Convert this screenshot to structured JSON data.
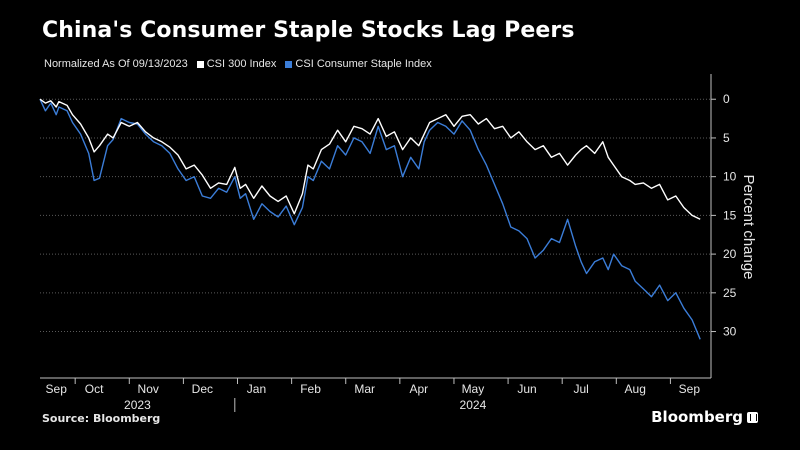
{
  "title": "China's Consumer Staple Stocks Lag Peers",
  "legend": {
    "normalized_note": "Normalized As Of 09/13/2023",
    "entries": [
      {
        "label": "CSI 300 Index",
        "color": "#ffffff"
      },
      {
        "label": "CSI Consumer Staple Index",
        "color": "#3b7dd8"
      }
    ]
  },
  "source": "Source: Bloomberg",
  "brand": "Bloomberg",
  "chart_data": {
    "type": "line",
    "ylabel": "Percent change",
    "ylim": [
      -36,
      3
    ],
    "y_ticks": [
      0,
      -5,
      -10,
      -15,
      -20,
      -25,
      -30
    ],
    "y_tick_labels": [
      "0",
      "5",
      "10",
      "15",
      "20",
      "25",
      "30"
    ],
    "x_range": [
      0,
      12.4
    ],
    "x_tick_labels": [
      "Sep",
      "Oct",
      "Nov",
      "Dec",
      "Jan",
      "Feb",
      "Mar",
      "Apr",
      "May",
      "Jun",
      "Jul",
      "Aug",
      "Sep"
    ],
    "x_label_pos": [
      0.3,
      1,
      2,
      3,
      4,
      5,
      6,
      7,
      8,
      9,
      10,
      11,
      12
    ],
    "year_labels": [
      {
        "label": "2023",
        "x": 1.8
      },
      {
        "label": "2024",
        "x": 8.0
      }
    ],
    "year_divider_x": 3.6,
    "series": [
      {
        "name": "CSI 300 Index",
        "color": "#ffffff",
        "x": [
          0,
          0.1,
          0.2,
          0.3,
          0.35,
          0.5,
          0.6,
          0.75,
          0.9,
          1.0,
          1.1,
          1.25,
          1.35,
          1.5,
          1.65,
          1.8,
          1.95,
          2.1,
          2.25,
          2.4,
          2.55,
          2.7,
          2.85,
          3.0,
          3.15,
          3.3,
          3.45,
          3.6,
          3.7,
          3.8,
          3.95,
          4.1,
          4.25,
          4.4,
          4.55,
          4.7,
          4.85,
          4.95,
          5.05,
          5.2,
          5.35,
          5.5,
          5.65,
          5.8,
          5.95,
          6.1,
          6.25,
          6.4,
          6.55,
          6.7,
          6.85,
          7.0,
          7.1,
          7.2,
          7.35,
          7.5,
          7.65,
          7.8,
          7.95,
          8.1,
          8.25,
          8.4,
          8.55,
          8.7,
          8.85,
          9.0,
          9.15,
          9.3,
          9.45,
          9.6,
          9.75,
          9.9,
          10.0,
          10.1,
          10.25,
          10.4,
          10.5,
          10.6,
          10.75,
          10.9,
          11.0,
          11.15,
          11.3,
          11.45,
          11.6,
          11.75,
          11.9,
          12.05,
          12.2
        ],
        "values": [
          0,
          -0.5,
          -0.2,
          -1.0,
          -0.3,
          -0.8,
          -2.0,
          -3.2,
          -5.0,
          -6.8,
          -6.0,
          -4.5,
          -5.0,
          -3.0,
          -3.5,
          -3.0,
          -4.2,
          -5.0,
          -5.5,
          -6.2,
          -7.2,
          -9.0,
          -8.5,
          -9.8,
          -11.5,
          -10.8,
          -11.0,
          -8.8,
          -11.5,
          -11.0,
          -12.8,
          -11.2,
          -12.5,
          -13.2,
          -12.5,
          -14.8,
          -12.2,
          -8.5,
          -9.0,
          -6.5,
          -5.8,
          -4.0,
          -5.5,
          -3.5,
          -3.8,
          -4.5,
          -2.5,
          -4.8,
          -4.2,
          -6.5,
          -5.0,
          -6.0,
          -4.5,
          -3.0,
          -2.5,
          -2.0,
          -3.5,
          -2.2,
          -2.0,
          -3.2,
          -2.5,
          -3.8,
          -3.5,
          -5.0,
          -4.2,
          -5.5,
          -6.5,
          -6.0,
          -7.5,
          -7.0,
          -8.5,
          -7.2,
          -6.5,
          -6.0,
          -7.0,
          -5.5,
          -7.5,
          -8.5,
          -10.0,
          -10.5,
          -11.0,
          -10.8,
          -11.5,
          -11.0,
          -13.0,
          -12.5,
          -14.0,
          -15.0,
          -15.5
        ]
      },
      {
        "name": "CSI Consumer Staple Index",
        "color": "#3b7dd8",
        "x": [
          0,
          0.1,
          0.2,
          0.3,
          0.35,
          0.5,
          0.6,
          0.75,
          0.9,
          1.0,
          1.1,
          1.25,
          1.35,
          1.5,
          1.65,
          1.8,
          1.95,
          2.1,
          2.25,
          2.4,
          2.55,
          2.7,
          2.85,
          3.0,
          3.15,
          3.3,
          3.45,
          3.6,
          3.7,
          3.8,
          3.95,
          4.1,
          4.25,
          4.4,
          4.55,
          4.7,
          4.85,
          4.95,
          5.05,
          5.2,
          5.35,
          5.5,
          5.65,
          5.8,
          5.95,
          6.1,
          6.25,
          6.4,
          6.55,
          6.7,
          6.85,
          7.0,
          7.1,
          7.2,
          7.35,
          7.5,
          7.65,
          7.8,
          7.95,
          8.1,
          8.25,
          8.4,
          8.55,
          8.7,
          8.85,
          9.0,
          9.15,
          9.3,
          9.45,
          9.6,
          9.75,
          9.9,
          10.0,
          10.1,
          10.25,
          10.4,
          10.5,
          10.6,
          10.75,
          10.9,
          11.0,
          11.15,
          11.3,
          11.45,
          11.6,
          11.75,
          11.9,
          12.05,
          12.2
        ],
        "values": [
          0,
          -1.5,
          -0.5,
          -2.0,
          -1.0,
          -1.5,
          -3.0,
          -4.5,
          -7.0,
          -10.5,
          -10.2,
          -6.0,
          -5.2,
          -2.5,
          -3.0,
          -3.2,
          -4.5,
          -5.5,
          -6.0,
          -7.0,
          -9.0,
          -10.5,
          -10.0,
          -12.5,
          -12.8,
          -11.5,
          -12.0,
          -10.0,
          -12.8,
          -12.2,
          -15.5,
          -13.5,
          -14.5,
          -15.2,
          -13.8,
          -16.2,
          -14.0,
          -10.0,
          -10.5,
          -8.0,
          -9.0,
          -6.0,
          -7.2,
          -5.0,
          -5.5,
          -7.0,
          -3.5,
          -6.5,
          -6.0,
          -10.0,
          -7.5,
          -9.0,
          -5.5,
          -4.0,
          -3.0,
          -3.5,
          -4.5,
          -2.8,
          -4.0,
          -6.5,
          -8.5,
          -11.0,
          -13.5,
          -16.5,
          -17.0,
          -18.0,
          -20.5,
          -19.5,
          -18.0,
          -18.5,
          -15.5,
          -19.0,
          -21.0,
          -22.5,
          -21.0,
          -20.5,
          -22.0,
          -20.0,
          -21.5,
          -22.0,
          -23.5,
          -24.5,
          -25.5,
          -24.0,
          -26.0,
          -25.0,
          -27.0,
          -28.5,
          -31.0
        ]
      }
    ]
  }
}
